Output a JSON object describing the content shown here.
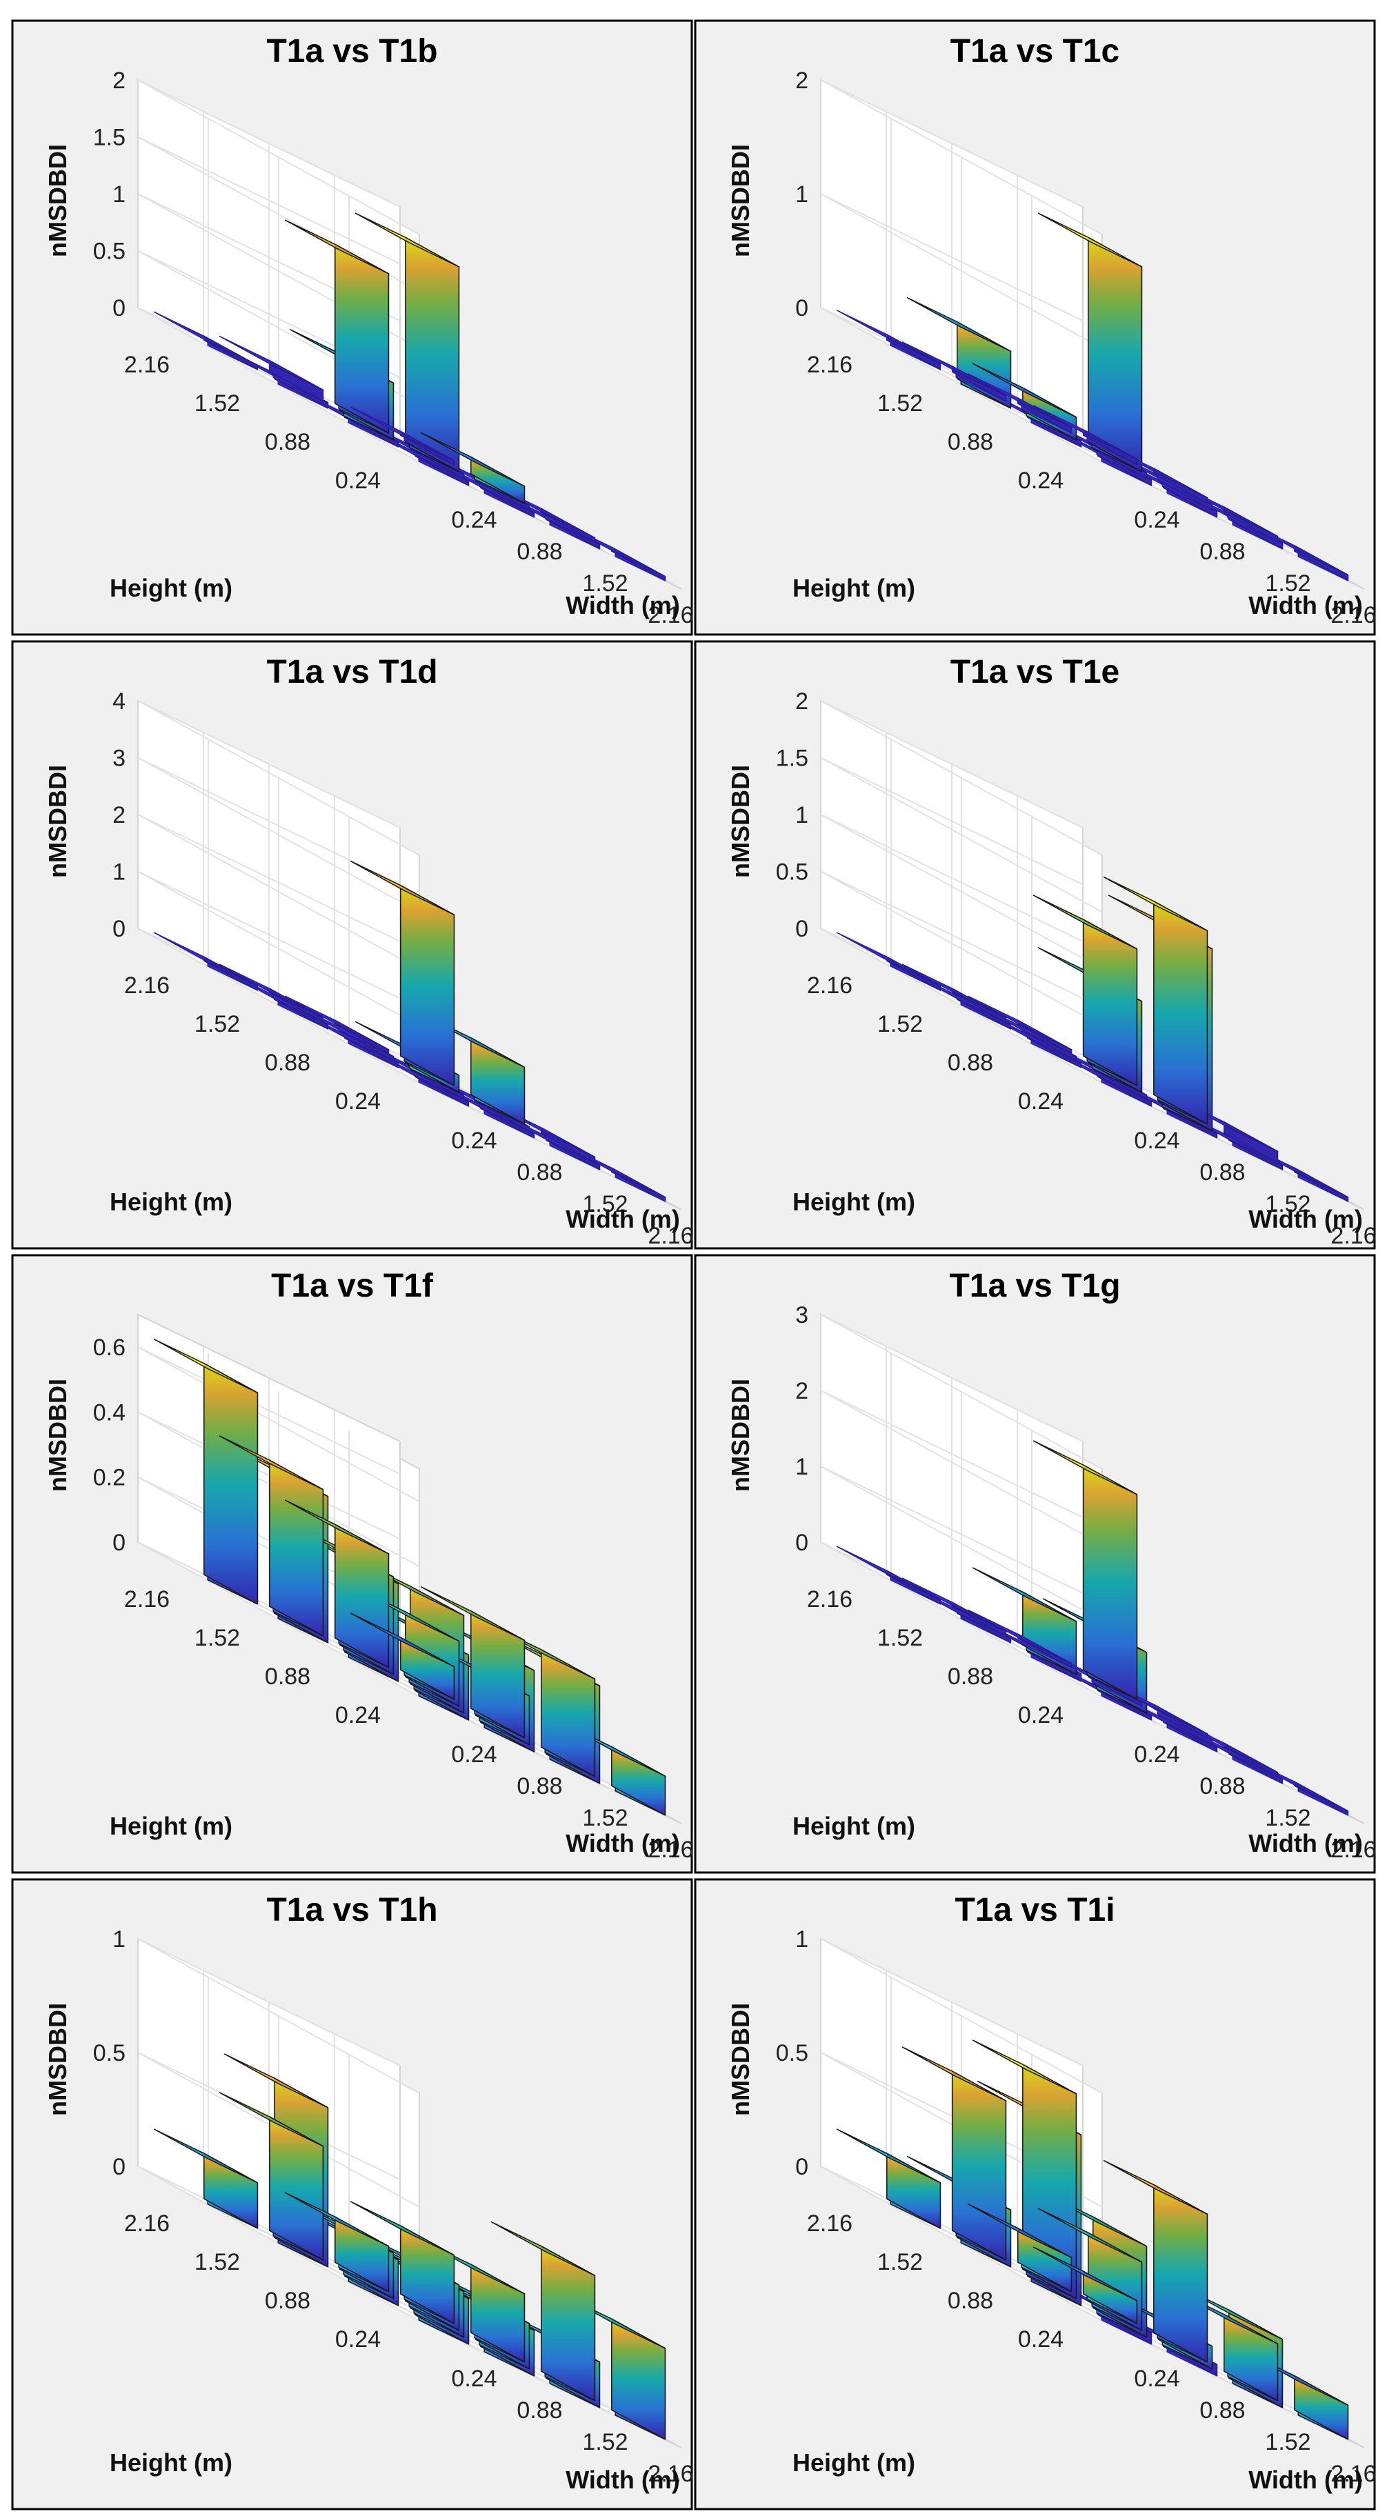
{
  "figure": {
    "background": "#f0f0f0",
    "border": "#000000",
    "floor_bar": "#3a2bc8"
  },
  "chart_data": [
    {
      "type": "bar3d",
      "title": "T1a vs T1b",
      "zlabel": "nMSDBDI",
      "xlabel": "Width (m)",
      "ylabel": "Height (m)",
      "x_ticks": [
        "0.24",
        "0.88",
        "1.52",
        "2.16"
      ],
      "y_ticks": [
        "0.24",
        "0.88",
        "1.52",
        "2.16"
      ],
      "z_ticks": [
        "0",
        "0.5",
        "1",
        "1.5",
        "2"
      ],
      "zlim": [
        0,
        2
      ],
      "grid": [
        [
          0,
          0,
          0,
          0
        ],
        [
          0,
          0,
          0,
          0
        ],
        [
          0.05,
          0.5,
          1.8,
          0.15
        ],
        [
          0,
          0.1,
          1.4,
          0
        ]
      ]
    },
    {
      "type": "bar3d",
      "title": "T1a vs T1c",
      "zlabel": "nMSDBDI",
      "xlabel": "Width (m)",
      "ylabel": "Height (m)",
      "x_ticks": [
        "0.24",
        "0.88",
        "1.52",
        "2.16"
      ],
      "y_ticks": [
        "0.24",
        "0.88",
        "1.52",
        "2.16"
      ],
      "z_ticks": [
        "0",
        "1",
        "2"
      ],
      "zlim": [
        0,
        2
      ],
      "grid": [
        [
          0.05,
          0.05,
          0.05,
          0.05
        ],
        [
          0.05,
          0.05,
          0.05,
          0.05
        ],
        [
          0.5,
          0.2,
          1.8,
          0.05
        ],
        [
          0.05,
          0.05,
          0.05,
          0.05
        ]
      ]
    },
    {
      "type": "bar3d",
      "title": "T1a vs T1d",
      "zlabel": "nMSDBDI",
      "xlabel": "Width (m)",
      "ylabel": "Height (m)",
      "x_ticks": [
        "0.24",
        "0.88",
        "1.52",
        "2.16"
      ],
      "y_ticks": [
        "0.24",
        "0.88",
        "1.52",
        "2.16"
      ],
      "z_ticks": [
        "0",
        "1",
        "2",
        "3",
        "4"
      ],
      "zlim": [
        0,
        4
      ],
      "grid": [
        [
          0,
          0,
          0,
          0
        ],
        [
          0,
          0,
          0,
          0.1
        ],
        [
          0,
          0,
          0.3,
          1
        ],
        [
          0,
          0,
          0,
          3
        ]
      ]
    },
    {
      "type": "bar3d",
      "title": "T1a vs T1e",
      "zlabel": "nMSDBDI",
      "xlabel": "Width (m)",
      "ylabel": "Height (m)",
      "x_ticks": [
        "0.24",
        "0.88",
        "1.52",
        "2.16"
      ],
      "y_ticks": [
        "0.24",
        "0.88",
        "1.52",
        "2.16"
      ],
      "z_ticks": [
        "0",
        "0.5",
        "1",
        "1.5",
        "2"
      ],
      "zlim": [
        0,
        2
      ],
      "grid": [
        [
          0,
          0,
          0,
          0
        ],
        [
          0,
          0,
          1.6,
          0.1
        ],
        [
          0,
          0,
          0.8,
          1.7
        ],
        [
          0,
          0,
          0,
          1.2
        ]
      ]
    },
    {
      "type": "bar3d",
      "title": "T1a vs T1f",
      "zlabel": "nMSDBDI",
      "xlabel": "Width (m)",
      "ylabel": "Height (m)",
      "x_ticks": [
        "0.24",
        "0.88",
        "1.52",
        "2.16"
      ],
      "y_ticks": [
        "0.24",
        "0.88",
        "1.52",
        "2.16"
      ],
      "z_ticks": [
        "0",
        "0.2",
        "0.4",
        "0.6"
      ],
      "zlim": [
        0,
        0.7
      ],
      "grid": [
        [
          0.2,
          0.25,
          0.3,
          0.12
        ],
        [
          0.3,
          0.3,
          0.15,
          0.3
        ],
        [
          0.45,
          0.3,
          0.2,
          0.3
        ],
        [
          0.65,
          0.45,
          0.35,
          0.1
        ]
      ]
    },
    {
      "type": "bar3d",
      "title": "T1a vs T1g",
      "zlabel": "nMSDBDI",
      "xlabel": "Width (m)",
      "ylabel": "Height (m)",
      "x_ticks": [
        "0.24",
        "0.88",
        "1.52",
        "2.16"
      ],
      "y_ticks": [
        "0.24",
        "0.88",
        "1.52",
        "2.16"
      ],
      "z_ticks": [
        "0",
        "1",
        "2",
        "3"
      ],
      "zlim": [
        0,
        3
      ],
      "grid": [
        [
          0.05,
          0.05,
          0.05,
          0.05
        ],
        [
          0.1,
          0.8,
          0.1,
          0.05
        ],
        [
          0,
          0.7,
          0.05,
          0.05
        ],
        [
          0,
          0,
          0,
          2.7
        ]
      ]
    },
    {
      "type": "bar3d",
      "title": "T1a vs T1h",
      "zlabel": "nMSDBDI",
      "xlabel": "Width (m)",
      "ylabel": "Height (m)",
      "x_ticks": [
        "0.24",
        "0.88",
        "1.52",
        "2.16"
      ],
      "y_ticks": [
        "0.24",
        "0.88",
        "1.52",
        "2.16"
      ],
      "z_ticks": [
        "0",
        "0.5",
        "1"
      ],
      "zlim": [
        0,
        1
      ],
      "grid": [
        [
          0.2,
          0.2,
          0.2,
          0.4
        ],
        [
          0.2,
          0.2,
          0.2,
          0.55
        ],
        [
          0.7,
          0.2,
          0.2,
          0.3
        ],
        [
          0.2,
          0.5,
          0.2,
          0.3
        ]
      ]
    },
    {
      "type": "bar3d",
      "title": "T1a vs T1i",
      "zlabel": "nMSDBDI",
      "xlabel": "Width (m)",
      "ylabel": "Height (m)",
      "x_ticks": [
        "0.24",
        "0.88",
        "1.52",
        "2.16"
      ],
      "y_ticks": [
        "0.24",
        "0.88",
        "1.52",
        "2.16"
      ],
      "z_ticks": [
        "0",
        "0.5",
        "1"
      ],
      "zlim": [
        0,
        1
      ],
      "grid": [
        [
          0.05,
          0.05,
          0.3,
          0.15
        ],
        [
          0.75,
          0.4,
          0.1,
          0.25
        ],
        [
          0.25,
          0.9,
          0.3,
          0.65
        ],
        [
          0.2,
          0.7,
          0.15,
          0.1
        ]
      ]
    }
  ]
}
